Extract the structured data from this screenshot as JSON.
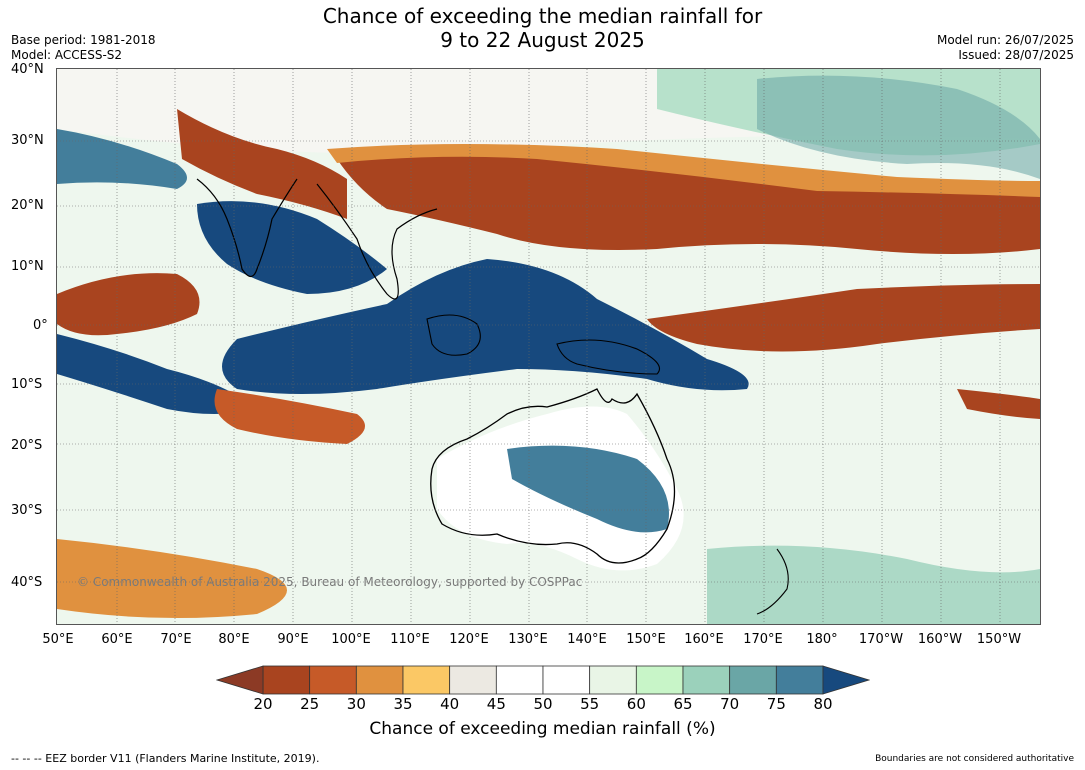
{
  "title": {
    "line1": "Chance of exceeding the median rainfall for",
    "line2": "9 to 22 August 2025"
  },
  "meta_left": {
    "base_period": "Base period: 1981-2018",
    "model": "Model: ACCESS-S2"
  },
  "meta_right": {
    "model_run": "Model run: 26/07/2025",
    "issued": "Issued: 28/07/2025"
  },
  "map": {
    "lat_labels": [
      "40°N",
      "30°N",
      "20°N",
      "10°N",
      "0°",
      "10°S",
      "20°S",
      "30°S",
      "40°S"
    ],
    "lon_labels": [
      "50°E",
      "60°E",
      "70°E",
      "80°E",
      "90°E",
      "100°E",
      "110°E",
      "120°E",
      "130°E",
      "140°E",
      "150°E",
      "160°E",
      "170°E",
      "180°",
      "170°W",
      "160°W",
      "150°W"
    ],
    "copyright": "© Commonwealth of Australia 2025, Bureau of Meteorology, supported by COSPPac",
    "background_color": "#eef7ee"
  },
  "colorbar": {
    "ticks": [
      "20",
      "25",
      "30",
      "35",
      "40",
      "45",
      "50",
      "55",
      "60",
      "65",
      "70",
      "75",
      "80"
    ],
    "colors": [
      "#a9441f",
      "#c65a28",
      "#e0913f",
      "#fbc865",
      "#ece9e2",
      "#ffffff",
      "#ffffff",
      "#e9f5e6",
      "#c8f5c8",
      "#9bd1bb",
      "#6aa6a6",
      "#437e9b"
    ],
    "low_color": "#8c3a25",
    "high_color": "#17497e",
    "label": "Chance of exceeding median rainfall (%)"
  },
  "footer": {
    "eez_note": "--  --  -- EEZ border V11 (Flanders Marine Institute, 2019).",
    "boundaries_note": "Boundaries are not considered authoritative"
  }
}
